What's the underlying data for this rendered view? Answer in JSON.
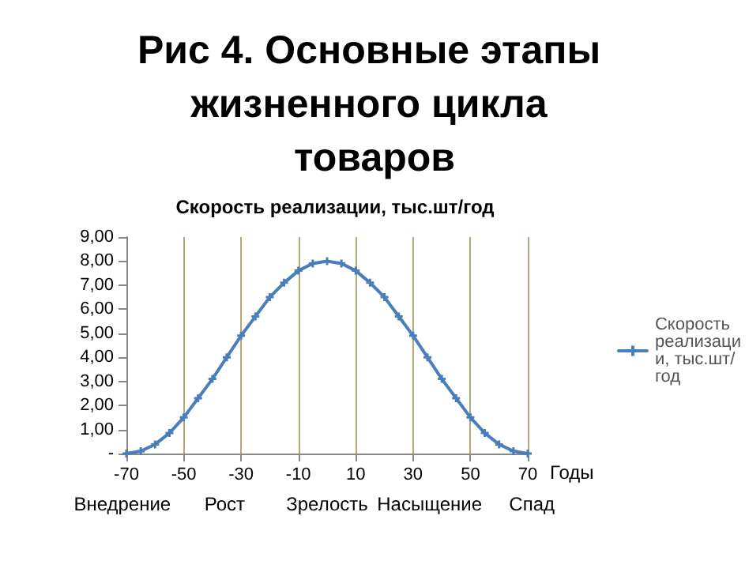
{
  "chart_data": {
    "type": "line",
    "title": "Рис 4. Основные этапы жизненного цикла товаров",
    "subtitle": "Скорость реализации, тыс.шт/год",
    "xlabel": "Годы",
    "annotations": [
      "Внедрение",
      "Рост",
      "Зрелость",
      "Насыщение",
      "Спад"
    ],
    "x": [
      -70,
      -65,
      -60,
      -55,
      -50,
      -45,
      -40,
      -35,
      -30,
      -25,
      -20,
      -15,
      -10,
      -5,
      0,
      5,
      10,
      15,
      20,
      25,
      30,
      35,
      40,
      45,
      50,
      55,
      60,
      65,
      70
    ],
    "series": [
      {
        "name": "Скорость реализации, тыс.шт/год",
        "color": "#4a7ebb",
        "values": [
          0,
          0.1,
          0.38,
          0.85,
          1.5,
          2.3,
          3.1,
          4.0,
          4.9,
          5.7,
          6.5,
          7.1,
          7.6,
          7.9,
          8.0,
          7.9,
          7.6,
          7.1,
          6.5,
          5.7,
          4.9,
          4.0,
          3.1,
          2.3,
          1.5,
          0.85,
          0.38,
          0.1,
          0
        ]
      }
    ],
    "xlim": [
      -70,
      70
    ],
    "xticks": [
      -70,
      -50,
      -30,
      -10,
      10,
      30,
      50,
      70
    ],
    "ylim": [
      0,
      9
    ],
    "yticks": [
      {
        "value": 0,
        "label": "-"
      },
      {
        "value": 1,
        "label": "1,00"
      },
      {
        "value": 2,
        "label": "2,00"
      },
      {
        "value": 3,
        "label": "3,00"
      },
      {
        "value": 4,
        "label": "4,00"
      },
      {
        "value": 5,
        "label": "5,00"
      },
      {
        "value": 6,
        "label": "6,00"
      },
      {
        "value": 7,
        "label": "7,00"
      },
      {
        "value": 8,
        "label": "8,00"
      },
      {
        "value": 9,
        "label": "9,00"
      }
    ],
    "grid": "x",
    "legend": "right",
    "marker": "cross",
    "line_style": "solid"
  }
}
